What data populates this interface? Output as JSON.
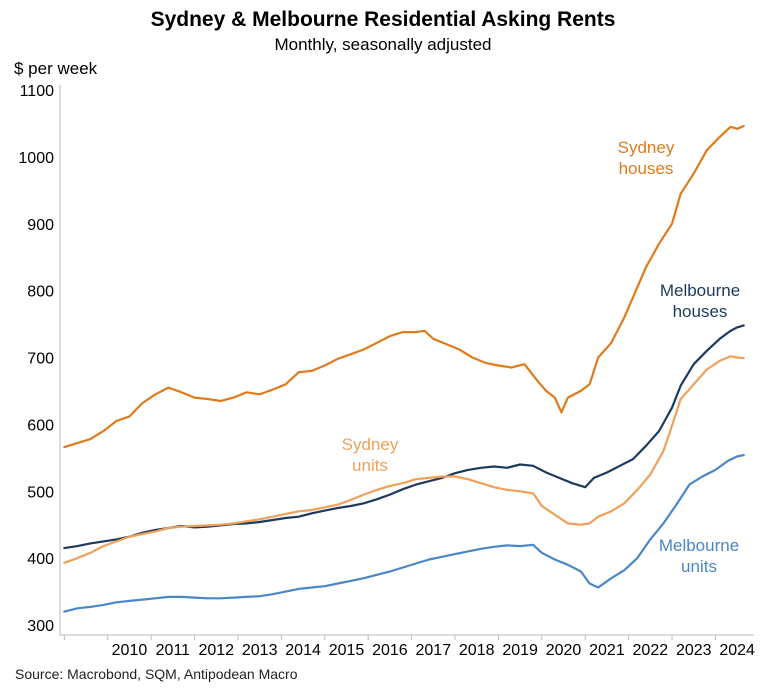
{
  "title": "Sydney & Melbourne Residential Asking Rents",
  "subtitle": "Monthly, seasonally adjusted",
  "source": "Source: Macrobond, SQM, Antipodean Macro",
  "chart_data": {
    "type": "line",
    "title": "Sydney & Melbourne Residential Asking Rents",
    "subtitle": "Monthly, seasonally adjusted",
    "ylabel": "$ per week",
    "xlabel": "",
    "ylim": [
      300,
      1100
    ],
    "yticks": [
      "1100",
      "1000",
      "900",
      "800",
      "700",
      "600",
      "500",
      "400",
      "300"
    ],
    "xlim": [
      2008.9,
      2024.75
    ],
    "xticks": [
      "2010",
      "2011",
      "2012",
      "2013",
      "2014",
      "2015",
      "2016",
      "2017",
      "2018",
      "2019",
      "2020",
      "2021",
      "2022",
      "2023",
      "2024"
    ],
    "grid": false,
    "legend": "inline labels",
    "series": [
      {
        "name": "Sydney houses",
        "color": "#e07b1c",
        "label_lines": [
          "Sydney",
          "houses"
        ],
        "points": [
          [
            2009.0,
            566
          ],
          [
            2009.3,
            572
          ],
          [
            2009.6,
            578
          ],
          [
            2009.9,
            590
          ],
          [
            2010.2,
            605
          ],
          [
            2010.5,
            612
          ],
          [
            2010.8,
            632
          ],
          [
            2011.1,
            645
          ],
          [
            2011.4,
            655
          ],
          [
            2011.7,
            648
          ],
          [
            2012.0,
            640
          ],
          [
            2012.3,
            638
          ],
          [
            2012.6,
            635
          ],
          [
            2012.9,
            640
          ],
          [
            2013.2,
            648
          ],
          [
            2013.5,
            645
          ],
          [
            2013.8,
            652
          ],
          [
            2014.1,
            660
          ],
          [
            2014.4,
            678
          ],
          [
            2014.7,
            680
          ],
          [
            2015.0,
            688
          ],
          [
            2015.3,
            698
          ],
          [
            2015.6,
            705
          ],
          [
            2015.9,
            712
          ],
          [
            2016.2,
            722
          ],
          [
            2016.5,
            732
          ],
          [
            2016.8,
            738
          ],
          [
            2017.1,
            738
          ],
          [
            2017.3,
            740
          ],
          [
            2017.5,
            728
          ],
          [
            2017.8,
            720
          ],
          [
            2018.1,
            712
          ],
          [
            2018.4,
            700
          ],
          [
            2018.7,
            692
          ],
          [
            2019.0,
            688
          ],
          [
            2019.3,
            685
          ],
          [
            2019.6,
            690
          ],
          [
            2019.9,
            665
          ],
          [
            2020.1,
            650
          ],
          [
            2020.3,
            640
          ],
          [
            2020.45,
            618
          ],
          [
            2020.6,
            640
          ],
          [
            2020.9,
            650
          ],
          [
            2021.1,
            660
          ],
          [
            2021.3,
            700
          ],
          [
            2021.6,
            722
          ],
          [
            2021.9,
            760
          ],
          [
            2022.1,
            790
          ],
          [
            2022.4,
            835
          ],
          [
            2022.7,
            870
          ],
          [
            2023.0,
            900
          ],
          [
            2023.2,
            945
          ],
          [
            2023.5,
            975
          ],
          [
            2023.8,
            1010
          ],
          [
            2024.1,
            1030
          ],
          [
            2024.35,
            1045
          ],
          [
            2024.5,
            1042
          ],
          [
            2024.65,
            1046
          ]
        ]
      },
      {
        "name": "Melbourne houses",
        "color": "#1c3a5e",
        "label_lines": [
          "Melbourne",
          "houses"
        ],
        "points": [
          [
            2009.0,
            415
          ],
          [
            2009.3,
            418
          ],
          [
            2009.6,
            422
          ],
          [
            2009.9,
            425
          ],
          [
            2010.2,
            428
          ],
          [
            2010.5,
            432
          ],
          [
            2010.8,
            438
          ],
          [
            2011.1,
            442
          ],
          [
            2011.4,
            445
          ],
          [
            2011.7,
            448
          ],
          [
            2012.0,
            446
          ],
          [
            2012.3,
            447
          ],
          [
            2012.6,
            449
          ],
          [
            2012.9,
            451
          ],
          [
            2013.2,
            452
          ],
          [
            2013.5,
            454
          ],
          [
            2013.8,
            457
          ],
          [
            2014.1,
            460
          ],
          [
            2014.4,
            462
          ],
          [
            2014.7,
            467
          ],
          [
            2015.0,
            471
          ],
          [
            2015.3,
            475
          ],
          [
            2015.6,
            478
          ],
          [
            2015.9,
            482
          ],
          [
            2016.2,
            488
          ],
          [
            2016.5,
            495
          ],
          [
            2016.8,
            503
          ],
          [
            2017.1,
            510
          ],
          [
            2017.4,
            515
          ],
          [
            2017.7,
            520
          ],
          [
            2018.0,
            527
          ],
          [
            2018.3,
            532
          ],
          [
            2018.6,
            535
          ],
          [
            2018.9,
            537
          ],
          [
            2019.2,
            535
          ],
          [
            2019.5,
            540
          ],
          [
            2019.8,
            538
          ],
          [
            2020.1,
            528
          ],
          [
            2020.4,
            520
          ],
          [
            2020.7,
            512
          ],
          [
            2021.0,
            506
          ],
          [
            2021.2,
            520
          ],
          [
            2021.5,
            528
          ],
          [
            2021.8,
            538
          ],
          [
            2022.1,
            548
          ],
          [
            2022.4,
            568
          ],
          [
            2022.7,
            590
          ],
          [
            2023.0,
            625
          ],
          [
            2023.2,
            658
          ],
          [
            2023.5,
            690
          ],
          [
            2023.8,
            710
          ],
          [
            2024.1,
            728
          ],
          [
            2024.35,
            740
          ],
          [
            2024.5,
            745
          ],
          [
            2024.65,
            748
          ]
        ]
      },
      {
        "name": "Sydney units",
        "color": "#f0a05a",
        "label_lines": [
          "Sydney",
          "units"
        ],
        "points": [
          [
            2009.0,
            393
          ],
          [
            2009.3,
            400
          ],
          [
            2009.6,
            408
          ],
          [
            2009.9,
            418
          ],
          [
            2010.2,
            425
          ],
          [
            2010.5,
            432
          ],
          [
            2010.8,
            436
          ],
          [
            2011.1,
            440
          ],
          [
            2011.4,
            445
          ],
          [
            2011.7,
            447
          ],
          [
            2012.0,
            448
          ],
          [
            2012.3,
            449
          ],
          [
            2012.6,
            450
          ],
          [
            2012.9,
            452
          ],
          [
            2013.2,
            455
          ],
          [
            2013.5,
            458
          ],
          [
            2013.8,
            462
          ],
          [
            2014.1,
            466
          ],
          [
            2014.4,
            470
          ],
          [
            2014.7,
            472
          ],
          [
            2015.0,
            476
          ],
          [
            2015.3,
            480
          ],
          [
            2015.6,
            487
          ],
          [
            2015.9,
            495
          ],
          [
            2016.2,
            502
          ],
          [
            2016.5,
            508
          ],
          [
            2016.8,
            512
          ],
          [
            2017.1,
            518
          ],
          [
            2017.4,
            520
          ],
          [
            2017.7,
            522
          ],
          [
            2018.0,
            522
          ],
          [
            2018.3,
            518
          ],
          [
            2018.6,
            512
          ],
          [
            2018.9,
            506
          ],
          [
            2019.2,
            502
          ],
          [
            2019.5,
            500
          ],
          [
            2019.8,
            497
          ],
          [
            2020.0,
            478
          ],
          [
            2020.3,
            465
          ],
          [
            2020.6,
            452
          ],
          [
            2020.9,
            450
          ],
          [
            2021.1,
            452
          ],
          [
            2021.3,
            462
          ],
          [
            2021.6,
            470
          ],
          [
            2021.9,
            482
          ],
          [
            2022.2,
            502
          ],
          [
            2022.5,
            525
          ],
          [
            2022.8,
            560
          ],
          [
            2023.0,
            598
          ],
          [
            2023.2,
            638
          ],
          [
            2023.5,
            660
          ],
          [
            2023.8,
            682
          ],
          [
            2024.1,
            695
          ],
          [
            2024.35,
            702
          ],
          [
            2024.5,
            700
          ],
          [
            2024.65,
            699
          ]
        ]
      },
      {
        "name": "Melbourne units",
        "color": "#4a86c8",
        "label_lines": [
          "Melbourne",
          "units"
        ],
        "points": [
          [
            2009.0,
            320
          ],
          [
            2009.3,
            325
          ],
          [
            2009.6,
            327
          ],
          [
            2009.9,
            330
          ],
          [
            2010.2,
            334
          ],
          [
            2010.5,
            336
          ],
          [
            2010.8,
            338
          ],
          [
            2011.1,
            340
          ],
          [
            2011.4,
            342
          ],
          [
            2011.7,
            342
          ],
          [
            2012.0,
            341
          ],
          [
            2012.3,
            340
          ],
          [
            2012.6,
            340
          ],
          [
            2012.9,
            341
          ],
          [
            2013.2,
            342
          ],
          [
            2013.5,
            343
          ],
          [
            2013.8,
            346
          ],
          [
            2014.1,
            350
          ],
          [
            2014.4,
            354
          ],
          [
            2014.7,
            356
          ],
          [
            2015.0,
            358
          ],
          [
            2015.3,
            362
          ],
          [
            2015.6,
            366
          ],
          [
            2015.9,
            370
          ],
          [
            2016.2,
            375
          ],
          [
            2016.5,
            380
          ],
          [
            2016.8,
            386
          ],
          [
            2017.1,
            392
          ],
          [
            2017.4,
            398
          ],
          [
            2017.7,
            402
          ],
          [
            2018.0,
            406
          ],
          [
            2018.3,
            410
          ],
          [
            2018.6,
            414
          ],
          [
            2018.9,
            417
          ],
          [
            2019.2,
            419
          ],
          [
            2019.5,
            418
          ],
          [
            2019.8,
            420
          ],
          [
            2020.0,
            408
          ],
          [
            2020.3,
            398
          ],
          [
            2020.6,
            390
          ],
          [
            2020.9,
            380
          ],
          [
            2021.1,
            362
          ],
          [
            2021.3,
            356
          ],
          [
            2021.6,
            370
          ],
          [
            2021.9,
            382
          ],
          [
            2022.2,
            400
          ],
          [
            2022.5,
            428
          ],
          [
            2022.8,
            452
          ],
          [
            2023.1,
            480
          ],
          [
            2023.4,
            510
          ],
          [
            2023.7,
            522
          ],
          [
            2024.0,
            532
          ],
          [
            2024.3,
            546
          ],
          [
            2024.5,
            552
          ],
          [
            2024.65,
            554
          ]
        ]
      }
    ]
  }
}
